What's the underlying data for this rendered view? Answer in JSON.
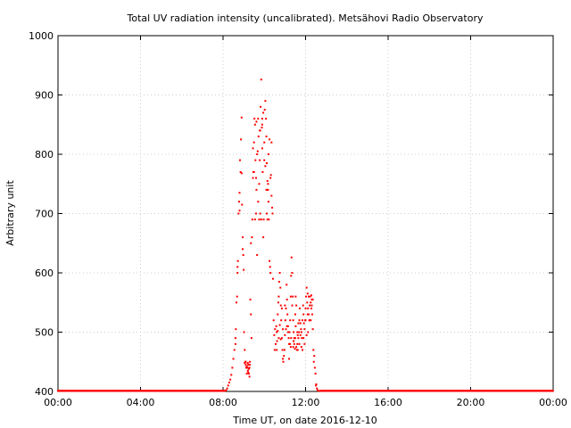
{
  "chart_data": {
    "type": "scatter",
    "title": "Total UV radiation intensity (uncalibrated). Metsähovi Radio Observatory",
    "xlabel": "Time UT, on date 2016-12-10",
    "ylabel": "Arbitrary unit",
    "xlim": [
      "00:00",
      "24:00"
    ],
    "ylim": [
      400,
      1000
    ],
    "x_unit": "hours UT",
    "x_ticks": [
      "00:00",
      "04:00",
      "08:00",
      "12:00",
      "16:00",
      "20:00",
      "00:00"
    ],
    "y_ticks": [
      "400",
      "500",
      "600",
      "700",
      "800",
      "900",
      "1000"
    ],
    "grid": true,
    "marker_color": "#ff0000",
    "series": [
      {
        "baseline": {
          "value": 401,
          "from": 0.0,
          "to": 8.1,
          "step": 0.02
        },
        "baseline_end": {
          "value": 401,
          "from": 12.75,
          "to": 24.0,
          "step": 0.02
        },
        "points": [
          [
            8.15,
            402
          ],
          [
            8.2,
            405
          ],
          [
            8.25,
            410
          ],
          [
            8.3,
            415
          ],
          [
            8.35,
            420
          ],
          [
            8.4,
            428
          ],
          [
            8.45,
            440
          ],
          [
            8.5,
            455
          ],
          [
            8.55,
            470
          ],
          [
            8.6,
            490
          ],
          [
            8.62,
            505
          ],
          [
            8.65,
            550
          ],
          [
            8.68,
            560
          ],
          [
            8.7,
            610
          ],
          [
            8.72,
            620
          ],
          [
            8.75,
            700
          ],
          [
            8.78,
            720
          ],
          [
            8.8,
            735
          ],
          [
            8.82,
            790
          ],
          [
            8.85,
            770
          ],
          [
            8.87,
            825
          ],
          [
            8.9,
            862
          ],
          [
            8.92,
            715
          ],
          [
            8.95,
            660
          ],
          [
            8.98,
            630
          ],
          [
            9.0,
            605
          ],
          [
            9.02,
            500
          ],
          [
            9.05,
            470
          ],
          [
            9.08,
            450
          ],
          [
            9.1,
            445
          ],
          [
            9.12,
            440
          ],
          [
            9.15,
            430
          ],
          [
            9.18,
            440
          ],
          [
            9.2,
            435
          ],
          [
            9.22,
            445
          ],
          [
            9.25,
            430
          ],
          [
            9.28,
            440
          ],
          [
            9.3,
            450
          ],
          [
            9.32,
            555
          ],
          [
            9.35,
            530
          ],
          [
            9.38,
            490
          ],
          [
            9.4,
            660
          ],
          [
            9.42,
            690
          ],
          [
            9.45,
            760
          ],
          [
            9.47,
            770
          ],
          [
            9.5,
            820
          ],
          [
            9.52,
            860
          ],
          [
            9.55,
            850
          ],
          [
            9.57,
            790
          ],
          [
            9.6,
            700
          ],
          [
            9.62,
            740
          ],
          [
            9.65,
            800
          ],
          [
            9.68,
            805
          ],
          [
            9.7,
            860
          ],
          [
            9.72,
            830
          ],
          [
            9.75,
            750
          ],
          [
            9.78,
            790
          ],
          [
            9.8,
            840
          ],
          [
            9.82,
            880
          ],
          [
            9.85,
            926
          ],
          [
            9.88,
            845
          ],
          [
            9.9,
            810
          ],
          [
            9.92,
            770
          ],
          [
            9.95,
            660
          ],
          [
            9.97,
            690
          ],
          [
            10.0,
            820
          ],
          [
            10.02,
            875
          ],
          [
            10.05,
            890
          ],
          [
            10.08,
            860
          ],
          [
            10.1,
            830
          ],
          [
            10.12,
            785
          ],
          [
            10.15,
            755
          ],
          [
            10.18,
            740
          ],
          [
            10.2,
            720
          ],
          [
            10.22,
            690
          ],
          [
            10.25,
            620
          ],
          [
            10.28,
            610
          ],
          [
            10.3,
            600
          ],
          [
            10.32,
            765
          ],
          [
            10.35,
            730
          ],
          [
            10.38,
            710
          ],
          [
            10.4,
            700
          ],
          [
            10.42,
            590
          ],
          [
            10.45,
            520
          ],
          [
            10.48,
            495
          ],
          [
            10.5,
            470
          ],
          [
            10.52,
            505
          ],
          [
            10.55,
            480
          ],
          [
            10.58,
            510
          ],
          [
            10.6,
            500
          ],
          [
            10.62,
            485
          ],
          [
            10.65,
            530
          ],
          [
            10.68,
            550
          ],
          [
            10.7,
            560
          ],
          [
            10.72,
            585
          ],
          [
            10.75,
            600
          ],
          [
            10.78,
            575
          ],
          [
            10.8,
            545
          ],
          [
            10.82,
            520
          ],
          [
            10.85,
            490
          ],
          [
            10.88,
            470
          ],
          [
            10.9,
            455
          ],
          [
            10.92,
            450
          ],
          [
            10.95,
            460
          ],
          [
            10.98,
            470
          ],
          [
            11.0,
            495
          ],
          [
            11.02,
            520
          ],
          [
            11.05,
            540
          ],
          [
            11.08,
            580
          ],
          [
            11.1,
            555
          ],
          [
            11.12,
            530
          ],
          [
            11.15,
            510
          ],
          [
            11.18,
            490
          ],
          [
            11.2,
            480
          ],
          [
            11.22,
            500
          ],
          [
            11.25,
            520
          ],
          [
            11.28,
            560
          ],
          [
            11.3,
            595
          ],
          [
            11.32,
            626
          ],
          [
            11.35,
            600
          ],
          [
            11.38,
            560
          ],
          [
            11.4,
            520
          ],
          [
            11.42,
            500
          ],
          [
            11.45,
            480
          ],
          [
            11.48,
            472
          ],
          [
            11.5,
            490
          ],
          [
            11.52,
            510
          ],
          [
            11.55,
            475
          ],
          [
            11.58,
            470
          ],
          [
            11.6,
            480
          ],
          [
            11.62,
            495
          ],
          [
            11.65,
            490
          ],
          [
            11.68,
            500
          ],
          [
            11.7,
            520
          ],
          [
            11.72,
            540
          ],
          [
            11.75,
            515
          ],
          [
            11.78,
            505
          ],
          [
            11.8,
            500
          ],
          [
            11.82,
            490
          ],
          [
            11.85,
            520
          ],
          [
            11.88,
            545
          ],
          [
            11.9,
            530
          ],
          [
            11.92,
            515
          ],
          [
            11.95,
            505
          ],
          [
            11.98,
            520
          ],
          [
            12.0,
            540
          ],
          [
            12.02,
            560
          ],
          [
            12.05,
            575
          ],
          [
            12.08,
            550
          ],
          [
            12.1,
            565
          ],
          [
            12.12,
            540
          ],
          [
            12.15,
            530
          ],
          [
            12.18,
            520
          ],
          [
            12.2,
            545
          ],
          [
            12.22,
            560
          ],
          [
            12.25,
            550
          ],
          [
            12.28,
            540
          ],
          [
            12.3,
            555
          ],
          [
            12.32,
            530
          ],
          [
            12.35,
            505
          ],
          [
            12.38,
            470
          ],
          [
            12.4,
            450
          ],
          [
            12.42,
            460
          ],
          [
            12.45,
            440
          ],
          [
            12.48,
            430
          ],
          [
            12.5,
            410
          ],
          [
            12.52,
            412
          ],
          [
            12.55,
            405
          ],
          [
            12.58,
            402
          ],
          [
            12.62,
            401
          ],
          [
            12.7,
            401
          ],
          [
            9.5,
            770
          ],
          [
            9.6,
            760
          ],
          [
            9.7,
            720
          ],
          [
            9.9,
            850
          ],
          [
            10.0,
            790
          ],
          [
            10.1,
            740
          ],
          [
            10.2,
            800
          ],
          [
            10.3,
            760
          ],
          [
            10.35,
            820
          ],
          [
            9.55,
            690
          ],
          [
            9.75,
            690
          ],
          [
            10.15,
            690
          ],
          [
            9.65,
            630
          ],
          [
            9.8,
            700
          ],
          [
            9.35,
            650
          ],
          [
            9.9,
            860
          ],
          [
            10.05,
            780
          ],
          [
            10.25,
            825
          ],
          [
            9.45,
            810
          ],
          [
            9.62,
            855
          ],
          [
            9.78,
            840
          ],
          [
            9.95,
            870
          ],
          [
            10.12,
            700
          ],
          [
            10.18,
            750
          ],
          [
            9.85,
            690
          ],
          [
            10.6,
            470
          ],
          [
            10.7,
            490
          ],
          [
            10.9,
            505
          ],
          [
            11.0,
            545
          ],
          [
            11.1,
            510
          ],
          [
            11.3,
            490
          ],
          [
            11.4,
            475
          ],
          [
            11.5,
            530
          ],
          [
            11.6,
            500
          ],
          [
            11.7,
            480
          ],
          [
            11.8,
            475
          ],
          [
            11.9,
            490
          ],
          [
            12.0,
            520
          ],
          [
            12.1,
            530
          ],
          [
            12.2,
            520
          ],
          [
            12.3,
            545
          ],
          [
            10.75,
            512
          ],
          [
            10.85,
            540
          ],
          [
            11.05,
            505
          ],
          [
            11.15,
            500
          ],
          [
            11.25,
            480
          ],
          [
            11.35,
            545
          ],
          [
            11.45,
            490
          ],
          [
            11.55,
            545
          ],
          [
            11.65,
            515
          ],
          [
            11.75,
            495
          ],
          [
            11.85,
            470
          ],
          [
            11.95,
            480
          ],
          [
            12.05,
            495
          ],
          [
            12.15,
            560
          ],
          [
            12.25,
            520
          ],
          [
            12.35,
            555
          ],
          [
            9.1,
            450
          ],
          [
            9.15,
            442
          ],
          [
            9.2,
            448
          ],
          [
            9.25,
            438
          ],
          [
            9.3,
            445
          ],
          [
            9.05,
            448
          ],
          [
            9.22,
            432
          ],
          [
            9.28,
            425
          ],
          [
            8.6,
            480
          ],
          [
            8.7,
            600
          ],
          [
            8.8,
            705
          ],
          [
            8.9,
            768
          ],
          [
            8.95,
            640
          ],
          [
            10.65,
            502
          ],
          [
            10.8,
            488
          ],
          [
            11.2,
            455
          ],
          [
            11.28,
            475
          ],
          [
            11.42,
            485
          ],
          [
            11.52,
            560
          ],
          [
            11.62,
            470
          ],
          [
            12.12,
            500
          ],
          [
            12.28,
            562
          ]
        ]
      }
    ]
  }
}
